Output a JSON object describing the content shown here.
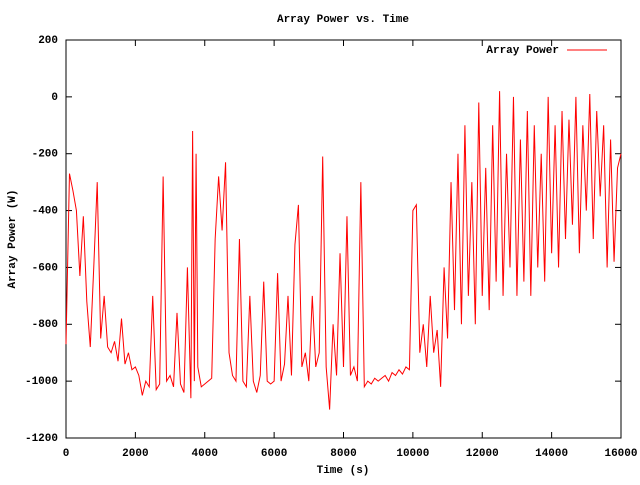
{
  "chart_data": {
    "type": "line",
    "title": "Array Power vs. Time",
    "xlabel": "Time (s)",
    "ylabel": "Array Power (W)",
    "xlim": [
      0,
      16000
    ],
    "ylim": [
      -1200,
      200
    ],
    "xticks": [
      0,
      2000,
      4000,
      6000,
      8000,
      10000,
      12000,
      14000,
      16000
    ],
    "yticks": [
      -1200,
      -1000,
      -800,
      -600,
      -400,
      -200,
      0,
      200
    ],
    "grid": false,
    "legend": "top right",
    "x": [
      0,
      100,
      200,
      300,
      400,
      500,
      600,
      700,
      800,
      900,
      1000,
      1100,
      1200,
      1300,
      1400,
      1500,
      1600,
      1700,
      1800,
      1900,
      2000,
      2100,
      2200,
      2300,
      2400,
      2500,
      2600,
      2700,
      2800,
      2900,
      3000,
      3100,
      3200,
      3300,
      3400,
      3500,
      3600,
      3650,
      3700,
      3750,
      3800,
      3900,
      4000,
      4100,
      4200,
      4300,
      4400,
      4500,
      4600,
      4700,
      4800,
      4900,
      5000,
      5100,
      5200,
      5300,
      5400,
      5500,
      5600,
      5700,
      5800,
      5900,
      6000,
      6100,
      6200,
      6300,
      6400,
      6500,
      6600,
      6700,
      6800,
      6900,
      7000,
      7100,
      7200,
      7300,
      7400,
      7500,
      7600,
      7700,
      7800,
      7900,
      8000,
      8100,
      8200,
      8300,
      8400,
      8500,
      8600,
      8700,
      8800,
      8900,
      9000,
      9100,
      9200,
      9300,
      9400,
      9500,
      9600,
      9700,
      9800,
      9900,
      10000,
      10100,
      10200,
      10300,
      10400,
      10500,
      10600,
      10700,
      10800,
      10900,
      11000,
      11100,
      11200,
      11300,
      11400,
      11500,
      11600,
      11700,
      11800,
      11900,
      12000,
      12100,
      12200,
      12300,
      12400,
      12500,
      12600,
      12700,
      12800,
      12900,
      13000,
      13100,
      13200,
      13300,
      13400,
      13500,
      13600,
      13700,
      13800,
      13900,
      14000,
      14100,
      14200,
      14300,
      14400,
      14500,
      14600,
      14700,
      14800,
      14900,
      15000,
      15100,
      15200,
      15300,
      15400,
      15500,
      15600,
      15700,
      15800,
      15900,
      16000
    ],
    "series": [
      {
        "name": "Array Power",
        "color": "#ff0000",
        "values": [
          -870,
          -270,
          -330,
          -400,
          -630,
          -420,
          -720,
          -880,
          -600,
          -300,
          -850,
          -700,
          -880,
          -900,
          -860,
          -930,
          -780,
          -940,
          -900,
          -960,
          -950,
          -980,
          -1050,
          -1000,
          -1020,
          -700,
          -1030,
          -1010,
          -280,
          -1000,
          -980,
          -1020,
          -760,
          -1010,
          -1040,
          -600,
          -1060,
          -120,
          -1000,
          -200,
          -950,
          -1020,
          -1010,
          -1000,
          -990,
          -500,
          -280,
          -470,
          -230,
          -900,
          -980,
          -1000,
          -500,
          -1000,
          -1020,
          -700,
          -1000,
          -1040,
          -980,
          -650,
          -1000,
          -1010,
          -1000,
          -620,
          -1000,
          -940,
          -700,
          -980,
          -520,
          -380,
          -950,
          -900,
          -1000,
          -700,
          -950,
          -900,
          -210,
          -950,
          -1100,
          -800,
          -980,
          -550,
          -950,
          -420,
          -980,
          -950,
          -1000,
          -300,
          -1020,
          -1000,
          -1010,
          -990,
          -1000,
          -990,
          -980,
          -1000,
          -970,
          -980,
          -960,
          -975,
          -950,
          -960,
          -400,
          -380,
          -900,
          -800,
          -950,
          -700,
          -900,
          -820,
          -1020,
          -600,
          -850,
          -300,
          -750,
          -200,
          -800,
          -100,
          -700,
          -300,
          -800,
          -20,
          -700,
          -250,
          -750,
          -100,
          -650,
          20,
          -700,
          -200,
          -600,
          0,
          -700,
          -150,
          -650,
          -50,
          -700,
          -100,
          -600,
          -200,
          -650,
          0,
          -550,
          -100,
          -600,
          -50,
          -500,
          -80,
          -450,
          0,
          -550,
          -100,
          -400,
          10,
          -500,
          -50,
          -350,
          -100,
          -600,
          -150,
          -580,
          -250,
          -200
        ]
      }
    ]
  }
}
